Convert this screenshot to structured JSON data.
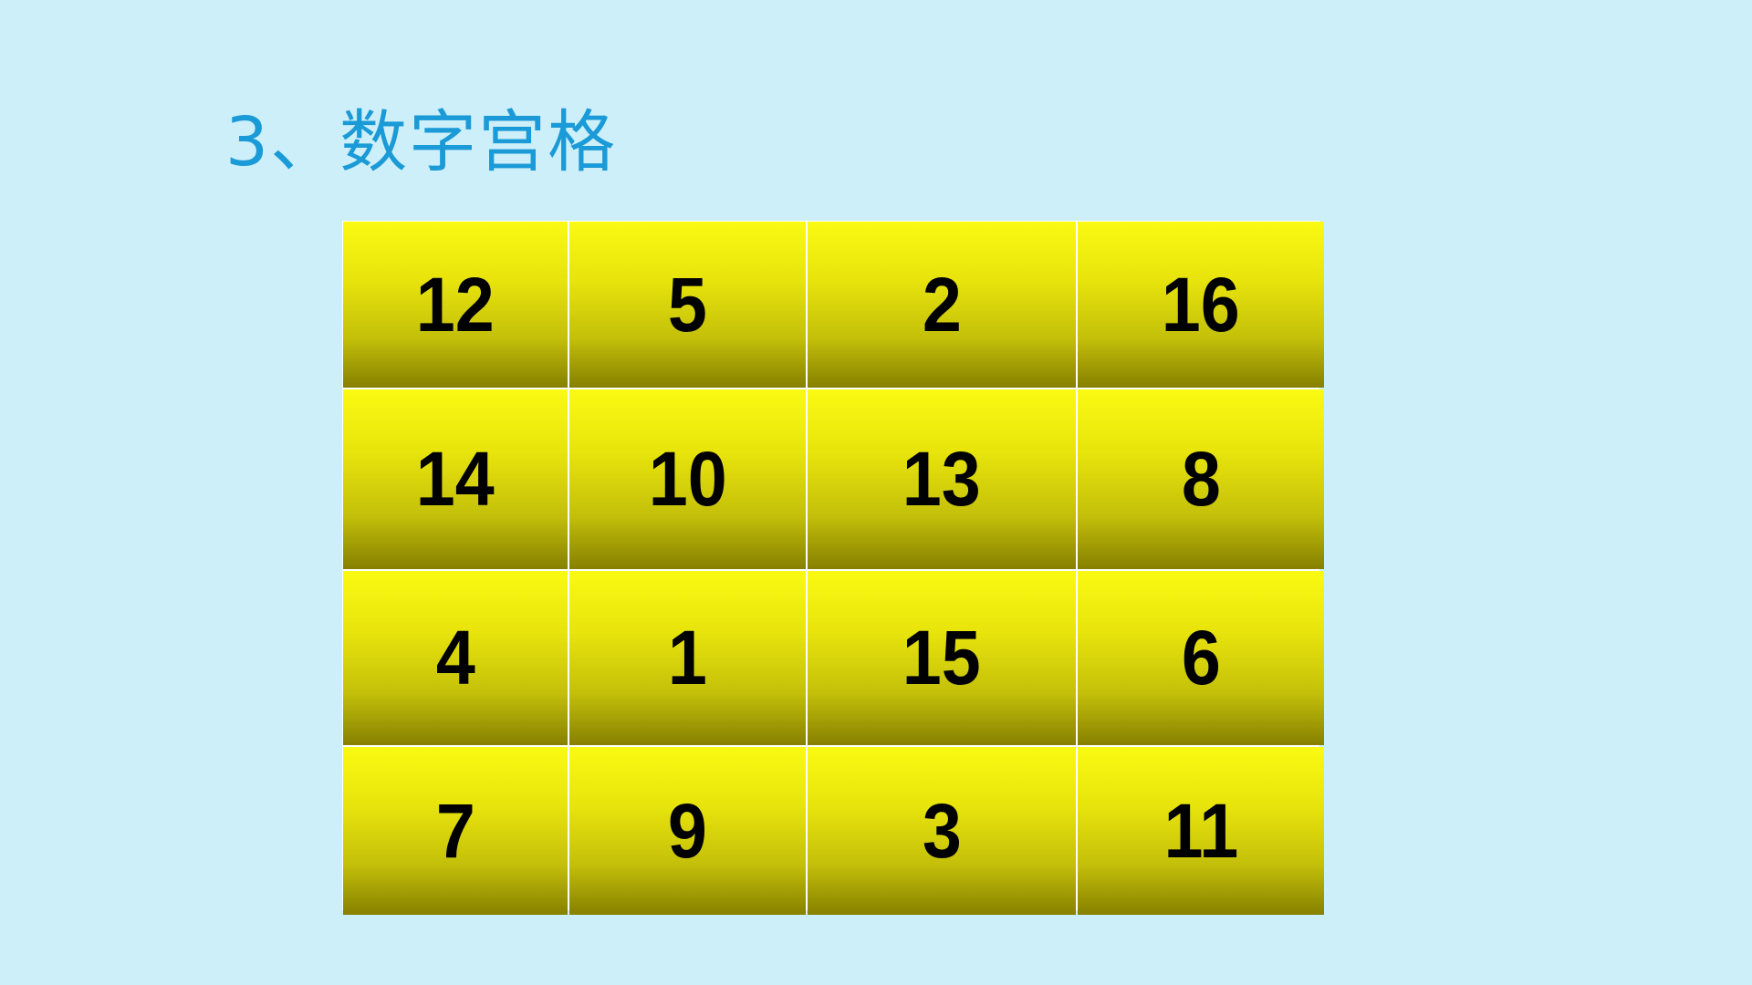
{
  "title": "3、数字宫格",
  "grid": {
    "rows": [
      [
        "12",
        "5",
        "2",
        "16"
      ],
      [
        "14",
        "10",
        "13",
        "8"
      ],
      [
        "4",
        "1",
        "15",
        "6"
      ],
      [
        "7",
        "9",
        "3",
        "11"
      ]
    ]
  },
  "colors": {
    "background": "#cdeff9",
    "title": "#1a9ad6",
    "cell_top": "#fafa12",
    "cell_bottom": "#868000"
  }
}
